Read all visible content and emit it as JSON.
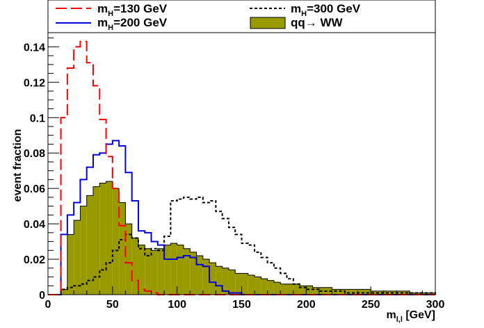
{
  "chart_data": {
    "type": "histogram",
    "title": "",
    "xlabel_main": "m",
    "xlabel_sub": "l,l",
    "xlabel_unit": " [GeV]",
    "ylabel": "event fraction",
    "xlim": [
      0,
      300
    ],
    "ylim": [
      0,
      0.148
    ],
    "bin_width": 5,
    "bin_edges_start": 0,
    "x_ticks": [
      0,
      50,
      100,
      150,
      200,
      250,
      300
    ],
    "x_tick_labels": [
      "0",
      "50",
      "100",
      "150",
      "200",
      "250",
      "300"
    ],
    "y_ticks": [
      0,
      0.02,
      0.04,
      0.06,
      0.08,
      0.1,
      0.12,
      0.14
    ],
    "y_tick_labels": [
      "0",
      "0.02",
      "0.04",
      "0.06",
      "0.08",
      "0.1",
      "0.12",
      "0.14"
    ],
    "grid": false,
    "legend_placement": "top",
    "series": [
      {
        "key": "mh130",
        "legend_main": "m",
        "legend_sub": "H",
        "legend_rest": "=130 GeV",
        "style": "long-dash",
        "color": "#ff0000",
        "values": [
          0,
          0,
          0.1,
          0.128,
          0.14,
          0.143,
          0.131,
          0.118,
          0.099,
          0.078,
          0.06,
          0.039,
          0.018,
          0.008,
          0.003,
          0.002,
          0.001,
          0,
          0,
          0,
          0,
          0,
          0,
          0,
          0,
          0,
          0,
          0,
          0,
          0,
          0,
          0,
          0,
          0,
          0,
          0,
          0,
          0,
          0,
          0,
          0,
          0,
          0,
          0,
          0,
          0,
          0,
          0,
          0,
          0,
          0,
          0,
          0,
          0,
          0,
          0,
          0,
          0,
          0,
          0
        ]
      },
      {
        "key": "mh200",
        "legend_main": "m",
        "legend_sub": "H",
        "legend_rest": "=200 GeV",
        "style": "solid",
        "color": "#0000dd",
        "values": [
          0,
          0,
          0.034,
          0.045,
          0.052,
          0.065,
          0.072,
          0.079,
          0.08,
          0.085,
          0.087,
          0.084,
          0.069,
          0.053,
          0.036,
          0.035,
          0.03,
          0.028,
          0.02,
          0.02,
          0.021,
          0.022,
          0.021,
          0.017,
          0.016,
          0.007,
          0.005,
          0.002,
          0.001,
          0.001,
          0,
          0,
          0,
          0,
          0,
          0,
          0,
          0,
          0,
          0,
          0,
          0,
          0,
          0,
          0,
          0,
          0,
          0,
          0,
          0,
          0,
          0,
          0,
          0,
          0,
          0,
          0,
          0,
          0,
          0
        ]
      },
      {
        "key": "mh300",
        "legend_main": "m",
        "legend_sub": "H",
        "legend_rest": "=300 GeV",
        "style": "dotted",
        "color": "#000000",
        "values": [
          0,
          0,
          0.003,
          0.004,
          0.005,
          0.006,
          0.008,
          0.01,
          0.014,
          0.018,
          0.025,
          0.031,
          0.034,
          0.032,
          0.026,
          0.022,
          0.026,
          0.025,
          0.033,
          0.053,
          0.054,
          0.055,
          0.054,
          0.055,
          0.052,
          0.053,
          0.047,
          0.043,
          0.038,
          0.034,
          0.029,
          0.028,
          0.024,
          0.021,
          0.018,
          0.015,
          0.012,
          0.009,
          0.006,
          0.004,
          0.003,
          0.003,
          0.002,
          0.002,
          0.002,
          0.002,
          0.001,
          0.001,
          0.001,
          0.001,
          0.001,
          0.001,
          0.001,
          0.001,
          0.001,
          0.001,
          0.001,
          0.001,
          0.001,
          0.001
        ]
      },
      {
        "key": "qqww",
        "legend_main": "qq",
        "legend_arrow": "→",
        "legend_rest": " WW",
        "style": "filled",
        "color": "#999900",
        "values": [
          0,
          0,
          0.003,
          0.034,
          0.042,
          0.05,
          0.056,
          0.061,
          0.063,
          0.064,
          0.06,
          0.052,
          0.04,
          0.032,
          0.028,
          0.026,
          0.025,
          0.026,
          0.028,
          0.029,
          0.028,
          0.026,
          0.024,
          0.022,
          0.02,
          0.018,
          0.016,
          0.015,
          0.014,
          0.012,
          0.012,
          0.011,
          0.01,
          0.009,
          0.008,
          0.007,
          0.006,
          0.006,
          0.006,
          0.005,
          0.005,
          0.004,
          0.004,
          0.004,
          0.003,
          0.003,
          0.003,
          0.003,
          0.003,
          0.003,
          0.002,
          0.002,
          0.002,
          0.002,
          0.002,
          0.002,
          0.001,
          0.001,
          0.001,
          0.001
        ]
      }
    ]
  }
}
